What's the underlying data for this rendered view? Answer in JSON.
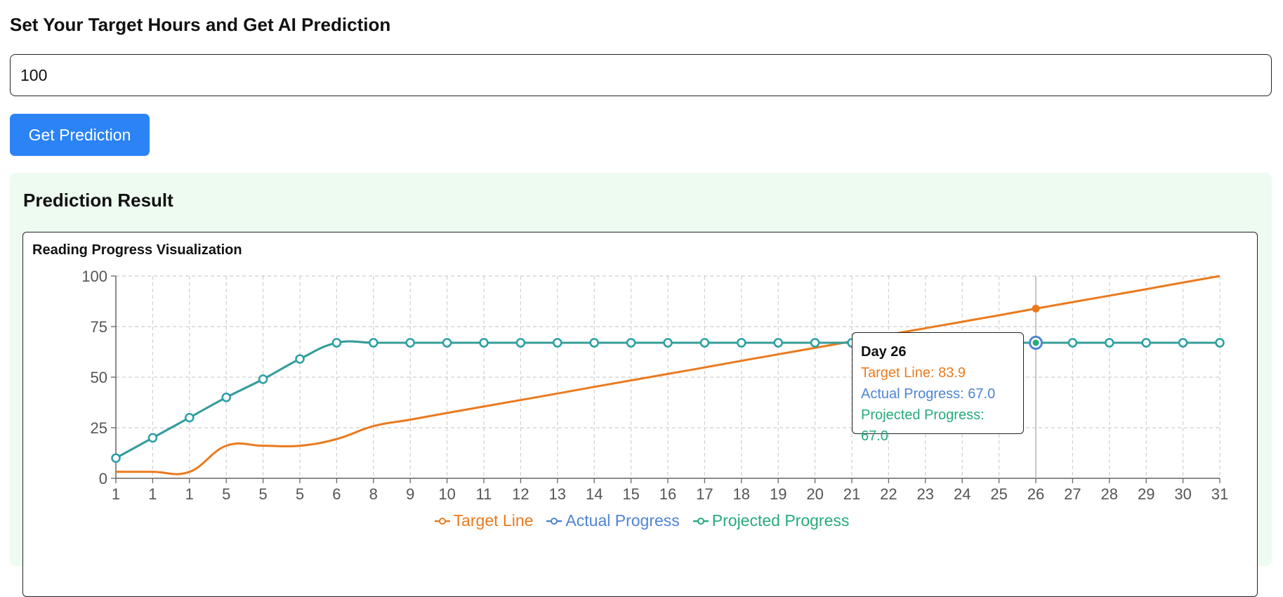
{
  "form": {
    "heading": "Set Your Target Hours and Get AI Prediction",
    "input_value": "100",
    "button_label": "Get Prediction"
  },
  "result": {
    "title": "Prediction Result",
    "chart_title": "Reading Progress Visualization"
  },
  "tooltip": {
    "title": "Day 26",
    "target": "Target Line: 83.9",
    "actual": "Actual Progress: 67.0",
    "projected": "Projected Progress: 67.0"
  },
  "colors": {
    "target": "#ea7a1e",
    "actual": "#4f84d2",
    "projected": "#27ab7a",
    "button": "#2b83f6",
    "panel": "#eefbf1"
  },
  "chart_data": {
    "type": "line",
    "categories": [
      "1",
      "1",
      "1",
      "5",
      "5",
      "5",
      "6",
      "8",
      "9",
      "10",
      "11",
      "12",
      "13",
      "14",
      "15",
      "16",
      "17",
      "18",
      "19",
      "20",
      "21",
      "22",
      "23",
      "24",
      "25",
      "26",
      "27",
      "28",
      "29",
      "30",
      "31"
    ],
    "ylim": [
      0,
      100
    ],
    "yticks": [
      0,
      25,
      50,
      75,
      100
    ],
    "grid": true,
    "legend_position": "bottom",
    "highlight_index": 25,
    "series": [
      {
        "name": "Target Line",
        "color": "#ea7a1e",
        "values": [
          3.2,
          3.2,
          3.2,
          16.1,
          16.1,
          16.1,
          19.4,
          25.8,
          29.0,
          32.3,
          35.5,
          38.7,
          41.9,
          45.2,
          48.4,
          51.6,
          54.8,
          58.1,
          61.3,
          64.5,
          67.7,
          71.0,
          74.2,
          77.4,
          80.6,
          83.9,
          87.1,
          90.3,
          93.5,
          96.8,
          100.0
        ]
      },
      {
        "name": "Actual Progress",
        "color": "#4f84d2",
        "values": [
          10,
          20,
          30,
          40,
          49,
          59,
          67,
          67,
          67,
          67,
          67,
          67,
          67,
          67,
          67,
          67,
          67,
          67,
          67,
          67,
          67,
          67,
          67,
          67,
          67,
          67,
          67,
          67,
          67,
          67,
          67
        ]
      },
      {
        "name": "Projected Progress",
        "color": "#27ab7a",
        "values": [
          10,
          20,
          30,
          40,
          49,
          59,
          67,
          67,
          67,
          67,
          67,
          67,
          67,
          67,
          67,
          67,
          67,
          67,
          67,
          67,
          67,
          67,
          67,
          67,
          67,
          67,
          67,
          67,
          67,
          67,
          67
        ]
      }
    ]
  }
}
